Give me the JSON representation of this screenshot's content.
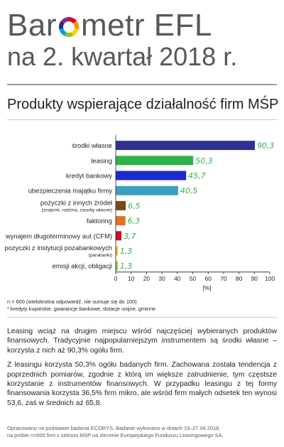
{
  "header": {
    "brand_prefix": "Bar",
    "brand_suffix": "metr EFL",
    "subtitle": "na 2. kwartał 2018 r."
  },
  "logo_colors": [
    "#e2001a",
    "#f39200",
    "#ffd500",
    "#95c11f",
    "#009fe3",
    "#312783",
    "#8b2a84"
  ],
  "chart_data": {
    "type": "bar",
    "orientation": "horizontal",
    "title": "Produkty wspierające działalność firm MŚP",
    "categories": [
      [
        "środki własne"
      ],
      [
        "leasing"
      ],
      [
        "kredyt bankowy"
      ],
      [
        "ubezpieczenia majątku firmy"
      ],
      [
        "pożyczki z innych źródeł",
        "(znajomi, rodzina, zasoby własne)"
      ],
      [
        "faktoring"
      ],
      [
        "wynajem długoterminowy aut (CFM)"
      ],
      [
        "pożyczki z instytucji pozabankowych",
        "(parabanki)"
      ],
      [
        "emisji akcji, obligacji"
      ]
    ],
    "values": [
      90.3,
      50.3,
      45.7,
      40.5,
      6.5,
      6.3,
      3.7,
      1.3,
      1.3
    ],
    "value_labels": [
      "90,3",
      "50,3",
      "45,7",
      "40,5",
      "6,5",
      "6,3",
      "3,7",
      "1,3",
      "1,3"
    ],
    "bar_colors": [
      "#2e3192",
      "#2db34a",
      "#1c2bd0",
      "#3aa0bf",
      "#7b4a12",
      "#e3721b",
      "#c4122f",
      "#f6b300",
      "#8dc63f"
    ],
    "xlim": [
      0,
      100
    ],
    "xticks": [
      "0",
      "10",
      "20",
      "30",
      "40",
      "50",
      "60",
      "70",
      "80",
      "90",
      "100"
    ],
    "xlabel": "[%]",
    "value_label_color": "#2db34a",
    "grid": false,
    "legend": "none"
  },
  "footnotes": [
    "n = 600 (wielokrotna odpowiedź, nie sumuje się do 100)",
    "* kredyty kupieckie, gwarancje bankowe, dotacje unijne, gminne"
  ],
  "body": [
    "Leasing wciąż na drugim miejscu wśród najczęściej wybieranych produktów finansowych. Tradycyjnie najpopularniejszym instrumentem są środki własne – korzysta z nich aż 90,3% ogółu firm.",
    "Z leasingu korzysta 50,3% ogółu badanych firm. Zachowana została tendencja z poprzednich pomiarów, zgodnie z którą im większe zatrudnienie, tym częstsze korzystanie z instrumentów finansowych. W przypadku leasingu z tej formy finansowania korzysta 36,5% firm mikro, ale wśród firm małych odsetek ten wynosi 53,6, zaś w średnich aż 65,8."
  ],
  "source": [
    "Opracowano na podstawie badania ECORYS. Badanie wykonano w dniach 19–27.04.2018,",
    "na próbie n=600 firm z sektora MSP na zlecenie Europejskiego Funduszu Leasingowego SA."
  ]
}
